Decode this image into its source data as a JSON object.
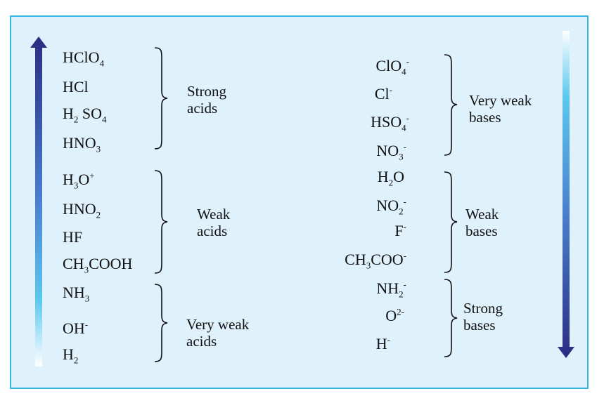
{
  "acids": [
    {
      "base": "HClO",
      "sub": "4",
      "sup": "",
      "tail": ""
    },
    {
      "base": "HCl",
      "sub": "",
      "sup": "",
      "tail": ""
    },
    {
      "base": "H",
      "sub": "2",
      "sup": "",
      "tail": " SO",
      "sub2": "4"
    },
    {
      "base": "HNO",
      "sub": "3",
      "sup": "",
      "tail": ""
    },
    {
      "base": "H",
      "sub": "3",
      "sup": "",
      "tail": "O",
      "sup2": "+"
    },
    {
      "base": "HNO",
      "sub": "2",
      "sup": "",
      "tail": ""
    },
    {
      "base": "HF",
      "sub": "",
      "sup": "",
      "tail": ""
    },
    {
      "base": "CH",
      "sub": "3",
      "sup": "",
      "tail": "COOH"
    },
    {
      "base": "NH",
      "sub": "3",
      "sup": "",
      "tail": ""
    },
    {
      "base": "OH",
      "sub": "",
      "sup": "-",
      "tail": ""
    },
    {
      "base": "H",
      "sub": "2",
      "sup": "",
      "tail": ""
    }
  ],
  "bases": [
    {
      "base": "ClO",
      "sub": "4",
      "sup": "-",
      "tail": ""
    },
    {
      "base": "Cl",
      "sub": "",
      "sup": "-",
      "tail": ""
    },
    {
      "base": "HSO",
      "sub": "4",
      "sup": "-",
      "tail": ""
    },
    {
      "base": "NO",
      "sub": "3",
      "sup": "-",
      "tail": ""
    },
    {
      "base": "H",
      "sub": "2",
      "sup": "",
      "tail": "O"
    },
    {
      "base": "NO",
      "sub": "2",
      "sup": "-",
      "tail": ""
    },
    {
      "base": "F",
      "sub": "",
      "sup": "-",
      "tail": ""
    },
    {
      "base": "CH",
      "sub": "3",
      "sup": "",
      "tail": "COO",
      "sup2": "-"
    },
    {
      "base": "NH",
      "sub": "2",
      "sup": "-",
      "tail": ""
    },
    {
      "base": "O",
      "sub": "",
      "sup": "2-",
      "tail": ""
    },
    {
      "base": "H",
      "sub": "",
      "sup": "-",
      "tail": ""
    }
  ],
  "group_labels": {
    "strong_acids": "Strong\nacids",
    "weak_acids": "Weak\nacids",
    "very_weak_acids": "Very weak\nacids",
    "very_weak_bases": "Very weak\nbases",
    "weak_bases": "Weak\nbases",
    "strong_bases": "Strong\nbases"
  },
  "colors": {
    "frame_fill": "#dff1fb",
    "frame_border": "#35b6e3",
    "arrow_dark": "#2b2c82",
    "arrow_mid": "#4aa3dc",
    "arrow_light": "#5cc8ee",
    "arrow_end": "#ffffff"
  },
  "icons": {
    "acid_strength_arrow": "arrow-up-icon",
    "base_strength_arrow": "arrow-down-icon",
    "brace": "right-curly-brace-icon"
  }
}
